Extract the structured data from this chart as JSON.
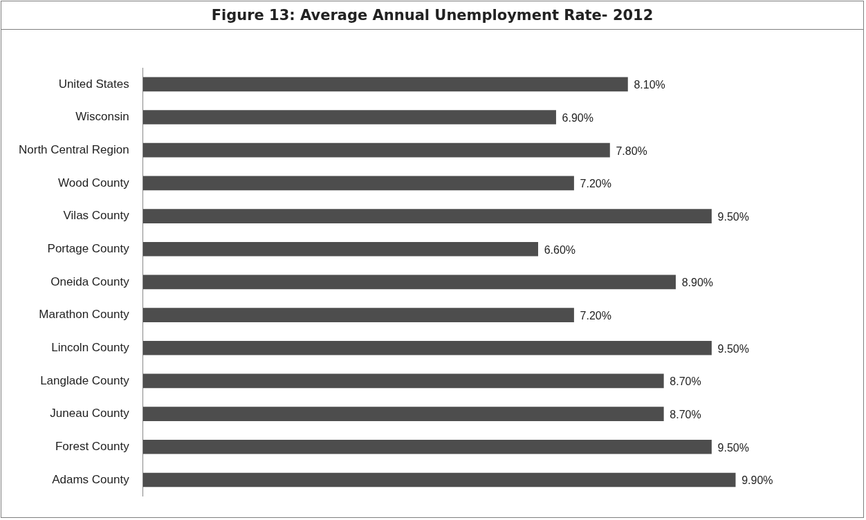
{
  "chart_data": {
    "type": "bar",
    "orientation": "horizontal",
    "title": "Figure 13: Average Annual Unemployment Rate- 2012",
    "categories": [
      "United States",
      "Wisconsin",
      "North Central Region",
      "Wood County",
      "Vilas County",
      "Portage County",
      "Oneida County",
      "Marathon County",
      "Lincoln County",
      "Langlade County",
      "Juneau County",
      "Forest County",
      "Adams County"
    ],
    "values": [
      8.1,
      6.9,
      7.8,
      7.2,
      9.5,
      6.6,
      8.9,
      7.2,
      9.5,
      8.7,
      8.7,
      9.5,
      9.9
    ],
    "value_labels": [
      "8.10%",
      "6.90%",
      "7.80%",
      "7.20%",
      "9.50%",
      "6.60%",
      "8.90%",
      "7.20%",
      "9.50%",
      "8.70%",
      "8.70%",
      "9.50%",
      "9.90%"
    ],
    "color": "#4d4d4d",
    "legend": false
  }
}
